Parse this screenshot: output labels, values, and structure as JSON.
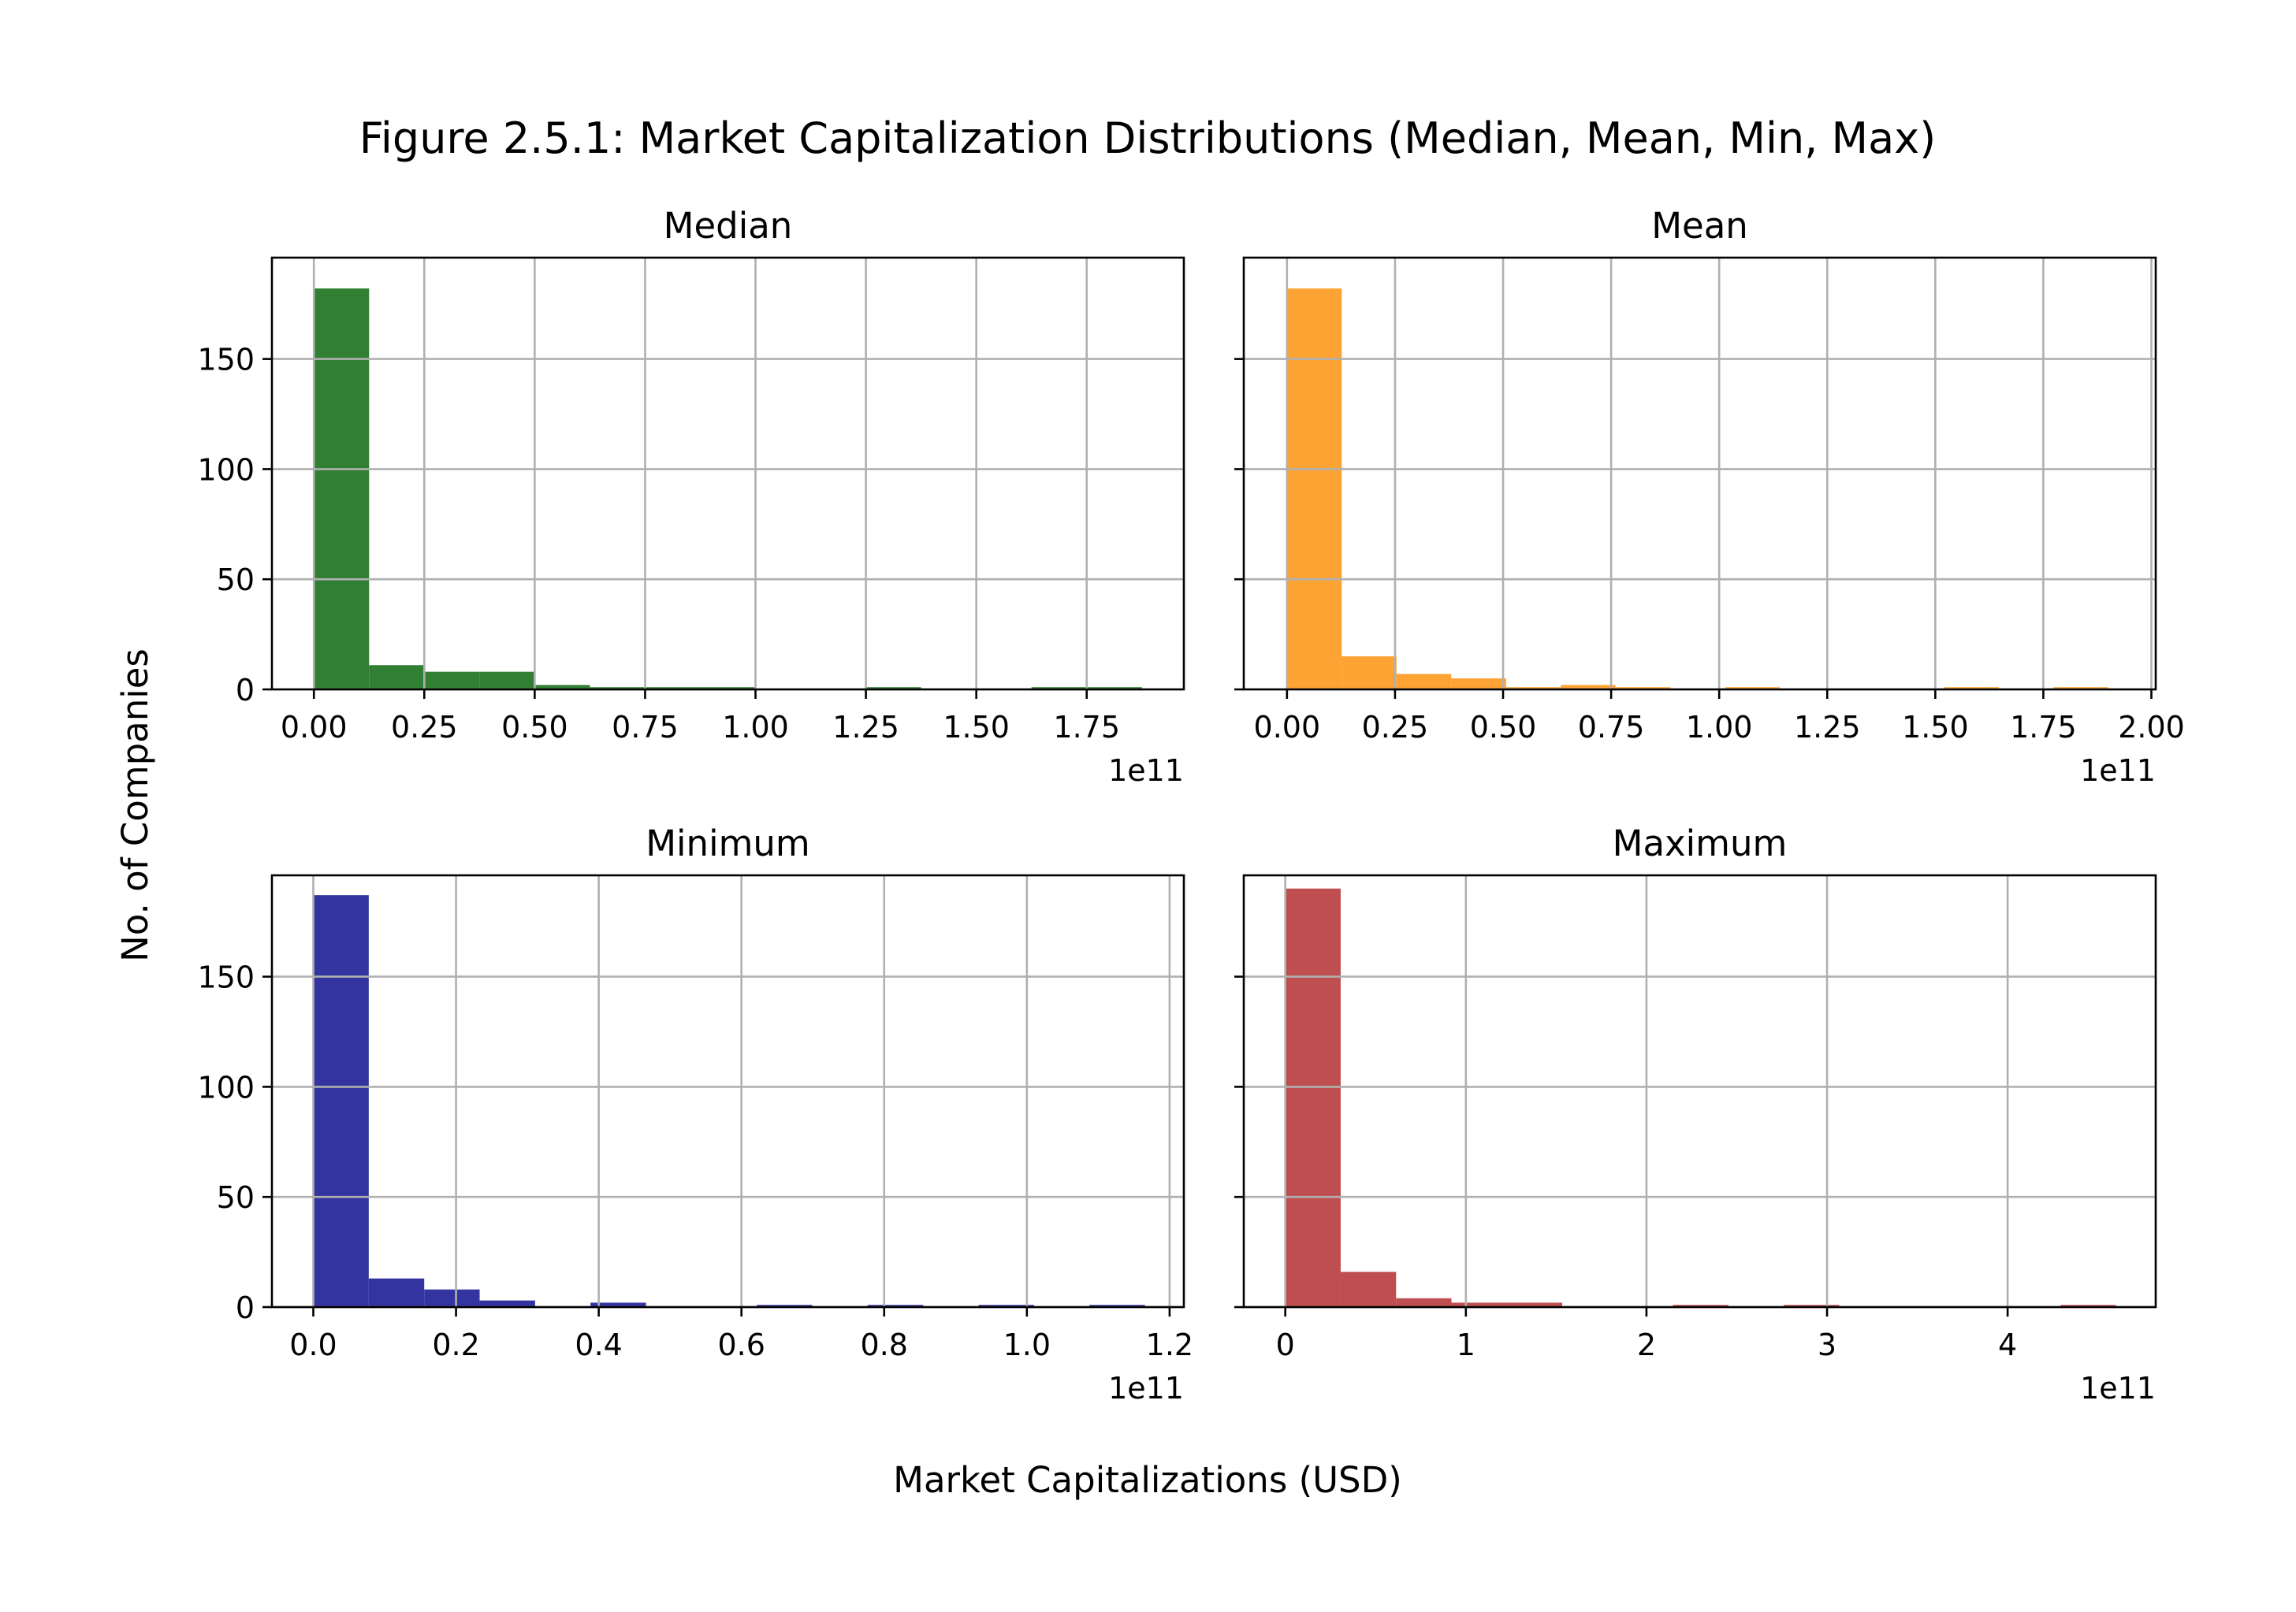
{
  "figure": {
    "title": "Figure 2.5.1: Market Capitalization Distributions (Median, Mean, Min, Max)",
    "xlabel": "Market Capitalizations (USD)",
    "ylabel": "No. of Companies"
  },
  "chart_data": [
    {
      "type": "bar",
      "title": "Median",
      "color": "#317f33",
      "offset_label": "1e11",
      "bins": 15,
      "bin_start": 0.0,
      "bin_width": 0.125,
      "values": [
        182,
        11,
        8,
        8,
        2,
        1,
        1,
        1,
        0,
        0,
        1,
        0,
        0,
        1,
        1
      ],
      "xlim": [
        -0.095,
        1.97
      ],
      "ylim": [
        0,
        196
      ],
      "xticks": [
        0,
        0.25,
        0.5,
        0.75,
        1.0,
        1.25,
        1.5,
        1.75
      ],
      "xtick_labels": [
        "0.00",
        "0.25",
        "0.50",
        "0.75",
        "1.00",
        "1.25",
        "1.50",
        "1.75"
      ],
      "yticks": [
        0,
        50,
        100,
        150
      ],
      "ytick_labels": [
        "0",
        "50",
        "100",
        "150"
      ],
      "show_ytick_labels": true,
      "grid": true
    },
    {
      "type": "bar",
      "title": "Mean",
      "color": "#fda333",
      "offset_label": "1e11",
      "bins": 15,
      "bin_start": 0.0,
      "bin_width": 0.1267,
      "values": [
        182,
        15,
        7,
        5,
        1,
        2,
        1,
        0,
        1,
        0,
        0,
        0,
        1,
        0,
        1
      ],
      "xlim": [
        -0.1,
        2.01
      ],
      "ylim": [
        0,
        196
      ],
      "xticks": [
        0,
        0.25,
        0.5,
        0.75,
        1.0,
        1.25,
        1.5,
        1.75,
        2.0
      ],
      "xtick_labels": [
        "0.00",
        "0.25",
        "0.50",
        "0.75",
        "1.00",
        "1.25",
        "1.50",
        "1.75",
        "2.00"
      ],
      "yticks": [
        0,
        50,
        100,
        150
      ],
      "ytick_labels": [
        "0",
        "50",
        "100",
        "150"
      ],
      "show_ytick_labels": false,
      "grid": true
    },
    {
      "type": "bar",
      "title": "Minimum",
      "color": "#3334a0",
      "offset_label": "1e11",
      "bins": 15,
      "bin_start": 0.0,
      "bin_width": 0.0777,
      "values": [
        187,
        13,
        8,
        3,
        0,
        2,
        0,
        0,
        1,
        0,
        1,
        0,
        1,
        0,
        1
      ],
      "xlim": [
        -0.058,
        1.22
      ],
      "ylim": [
        0,
        196
      ],
      "xticks": [
        0,
        0.2,
        0.4,
        0.6,
        0.8,
        1.0,
        1.2
      ],
      "xtick_labels": [
        "0.0",
        "0.2",
        "0.4",
        "0.6",
        "0.8",
        "1.0",
        "1.2"
      ],
      "yticks": [
        0,
        50,
        100,
        150
      ],
      "ytick_labels": [
        "0",
        "50",
        "100",
        "150"
      ],
      "show_ytick_labels": true,
      "grid": true
    },
    {
      "type": "bar",
      "title": "Maximum",
      "color": "#be4e4f",
      "offset_label": "1e11",
      "bins": 15,
      "bin_start": 0.0,
      "bin_width": 0.3067,
      "values": [
        190,
        16,
        4,
        2,
        2,
        0,
        0,
        1,
        0,
        1,
        0,
        0,
        0,
        0,
        1
      ],
      "xlim": [
        -0.23,
        4.82
      ],
      "ylim": [
        0,
        196
      ],
      "xticks": [
        0,
        1,
        2,
        3,
        4
      ],
      "xtick_labels": [
        "0",
        "1",
        "2",
        "3",
        "4"
      ],
      "yticks": [
        0,
        50,
        100,
        150
      ],
      "ytick_labels": [
        "0",
        "50",
        "100",
        "150"
      ],
      "show_ytick_labels": false,
      "grid": true
    }
  ]
}
